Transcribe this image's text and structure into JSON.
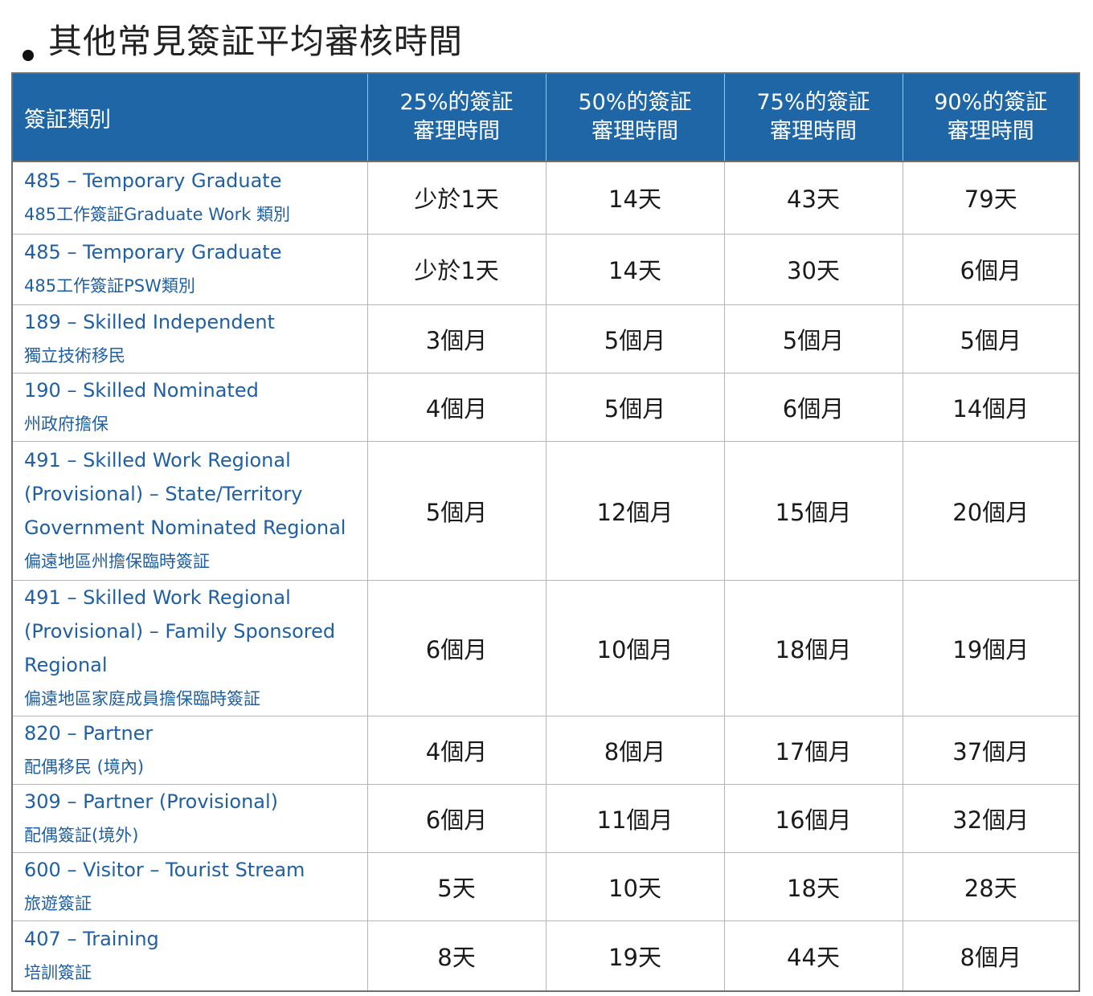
{
  "page": {
    "title": "其他常見簽証平均審核時間"
  },
  "table": {
    "headers": [
      "簽証類別",
      "25%的簽証\n審理時間",
      "50%的簽証\n審理時間",
      "75%的簽証\n審理時間",
      "90%的簽証\n審理時間"
    ],
    "rows": [
      {
        "en": "485 – Temporary Graduate",
        "zh": "485工作簽証Graduate Work 類別",
        "v": [
          "少於1天",
          "14天",
          "43天",
          "79天"
        ]
      },
      {
        "en": "485 – Temporary Graduate",
        "zh": "485工作簽証PSW類別",
        "v": [
          "少於1天",
          "14天",
          "30天",
          "6個月"
        ]
      },
      {
        "en": "189 – Skilled Independent",
        "zh": "獨立技術移民",
        "v": [
          "3個月",
          "5個月",
          "5個月",
          "5個月"
        ]
      },
      {
        "en": "190 – Skilled Nominated",
        "zh": "州政府擔保",
        "v": [
          "4個月",
          "5個月",
          "6個月",
          "14個月"
        ]
      },
      {
        "en": "491 – Skilled Work Regional (Provisional) – State/Territory Government Nominated Regional",
        "zh": "偏遠地區州擔保臨時簽証",
        "v": [
          "5個月",
          "12個月",
          "15個月",
          "20個月"
        ]
      },
      {
        "en": "491 – Skilled Work Regional (Provisional) – Family Sponsored Regional",
        "zh": "偏遠地區家庭成員擔保臨時簽証",
        "v": [
          "6個月",
          "10個月",
          "18個月",
          "19個月"
        ]
      },
      {
        "en": "820 – Partner",
        "zh": "配偶移民 (境內)",
        "v": [
          "4個月",
          "8個月",
          "17個月",
          "37個月"
        ]
      },
      {
        "en": "309 – Partner (Provisional)",
        "zh": "配偶簽証(境外)",
        "v": [
          "6個月",
          "11個月",
          "16個月",
          "32個月"
        ]
      },
      {
        "en": "600 – Visitor – Tourist Stream",
        "zh": "旅遊簽証",
        "v": [
          "5天",
          "10天",
          "18天",
          "28天"
        ]
      },
      {
        "en": "407 – Training",
        "zh": "培訓簽証",
        "v": [
          "8天",
          "19天",
          "44天",
          "8個月"
        ]
      }
    ]
  }
}
